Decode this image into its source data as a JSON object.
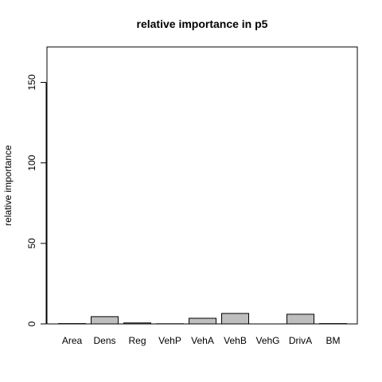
{
  "chart_data": {
    "type": "bar",
    "title": "relative importance in p5",
    "xlabel": "",
    "ylabel": "relative importance",
    "categories": [
      "Area",
      "Dens",
      "Reg",
      "VehP",
      "VehA",
      "VehB",
      "VehG",
      "DrivA",
      "BM"
    ],
    "values": [
      0.2,
      4.5,
      0.6,
      0.1,
      3.5,
      6.5,
      0.0,
      6.0,
      0.2
    ],
    "ylim": [
      0,
      172
    ],
    "yticks": [
      0,
      50,
      100,
      150
    ],
    "grid": false,
    "colors": {
      "bar_fill": "#bebebe",
      "bar_stroke": "#000000"
    }
  }
}
